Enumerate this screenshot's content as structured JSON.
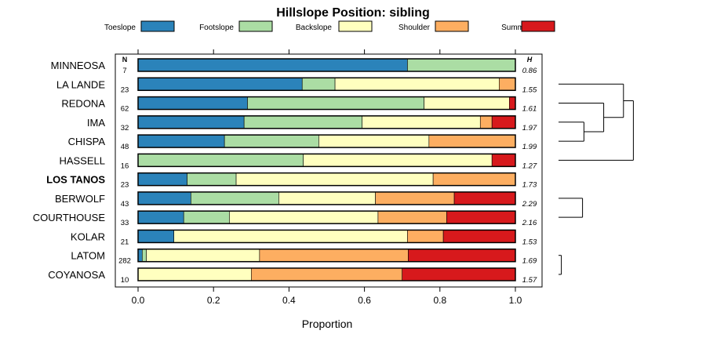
{
  "chart_data": {
    "type": "bar",
    "orientation": "horizontal",
    "stacked": true,
    "title": "Hillslope Position: sibling",
    "xlabel": "Proportion",
    "xlim": [
      0,
      1
    ],
    "xticks": [
      "0.0",
      "0.2",
      "0.4",
      "0.6",
      "0.8",
      "1.0"
    ],
    "n_header": "N",
    "h_header": "H",
    "legend_position": "top",
    "segments": [
      "Toeslope",
      "Footslope",
      "Backslope",
      "Shoulder",
      "Summit"
    ],
    "colors": [
      "#2b83ba",
      "#abdda4",
      "#ffffbf",
      "#fdae61",
      "#d7191c"
    ],
    "rows": [
      {
        "name": "MINNEOSA",
        "bold": false,
        "n": "7",
        "h": "0.86",
        "values": [
          0.714,
          0.286,
          0,
          0,
          0
        ]
      },
      {
        "name": "LA LANDE",
        "bold": false,
        "n": "23",
        "h": "1.55",
        "values": [
          0.435,
          0.087,
          0.435,
          0.043,
          0
        ]
      },
      {
        "name": "REDONA",
        "bold": false,
        "n": "62",
        "h": "1.61",
        "values": [
          0.29,
          0.468,
          0.226,
          0,
          0.016
        ]
      },
      {
        "name": "IMA",
        "bold": false,
        "n": "32",
        "h": "1.97",
        "values": [
          0.281,
          0.313,
          0.313,
          0.031,
          0.062
        ]
      },
      {
        "name": "CHISPA",
        "bold": false,
        "n": "48",
        "h": "1.99",
        "values": [
          0.229,
          0.25,
          0.292,
          0.229,
          0
        ]
      },
      {
        "name": "HASSELL",
        "bold": false,
        "n": "16",
        "h": "1.27",
        "values": [
          0,
          0.438,
          0.5,
          0,
          0.062
        ]
      },
      {
        "name": "LOS TANOS",
        "bold": true,
        "n": "23",
        "h": "1.73",
        "values": [
          0.13,
          0.13,
          0.522,
          0.218,
          0
        ]
      },
      {
        "name": "BERWOLF",
        "bold": false,
        "n": "43",
        "h": "2.29",
        "values": [
          0.14,
          0.233,
          0.256,
          0.209,
          0.162
        ]
      },
      {
        "name": "COURTHOUSE",
        "bold": false,
        "n": "33",
        "h": "2.16",
        "values": [
          0.121,
          0.121,
          0.394,
          0.182,
          0.182
        ]
      },
      {
        "name": "KOLAR",
        "bold": false,
        "n": "21",
        "h": "1.53",
        "values": [
          0.095,
          0,
          0.619,
          0.095,
          0.191
        ]
      },
      {
        "name": "LATOM",
        "bold": false,
        "n": "282",
        "h": "1.69",
        "values": [
          0.011,
          0.011,
          0.3,
          0.394,
          0.284
        ]
      },
      {
        "name": "COYANOSA",
        "bold": false,
        "n": "10",
        "h": "1.57",
        "values": [
          0,
          0,
          0.3,
          0.4,
          0.3
        ]
      }
    ],
    "dendrogram": {
      "leaves": [
        "MINNEOSA",
        "LA LANDE",
        "REDONA",
        "IMA",
        "CHISPA",
        "HASSELL",
        "LOS TANOS",
        "BERWOLF",
        "COURTHOUSE",
        "KOLAR",
        "LATOM",
        "COYANOSA"
      ],
      "merges": [
        {
          "a": "IMA",
          "b": "CHISPA",
          "height": 0.18
        },
        {
          "a": "COURTHOUSE",
          "b": "BERWOLF",
          "height": 0.17
        },
        {
          "a": "LATOM",
          "b": "COYANOSA",
          "height": 0.02
        },
        {
          "a": "REDONA",
          "b": "IMA+CHISPA",
          "height": 0.32
        },
        {
          "a": "LOS TANOS",
          "b": "BERWOLF+COURTHOUSE",
          "height": 0.35
        },
        {
          "a": "LA LANDE",
          "b": "REDONA+IMA+CHISPA",
          "height": 0.46
        },
        {
          "a": "LOS TANOS+BERWOLF+COURTHOUSE",
          "b": "KOLAR",
          "height": 0.45
        },
        {
          "a": "LA LANDE+REDONA+IMA+CHISPA",
          "b": "HASSELL",
          "height": 0.53
        },
        {
          "a": "LOS TANOS+BERWOLF+COURTHOUSE+KOLAR",
          "b": "LATOM+COYANOSA",
          "height": 0.48
        },
        {
          "a": "LA LANDE+REDONA+IMA+CHISPA+HASSELL",
          "b": "LOS TANOS+BERWOLF+COURTHOUSE+KOLAR+LATOM+COYANOSA",
          "height": 0.7
        },
        {
          "a": "MINNEOSA",
          "b": "LA LANDE+REDONA+IMA+CHISPA+HASSELL+LOS TANOS+BERWOLF+COURTHOUSE+KOLAR+LATOM+COYANOSA",
          "height": 1.0
        }
      ]
    }
  }
}
